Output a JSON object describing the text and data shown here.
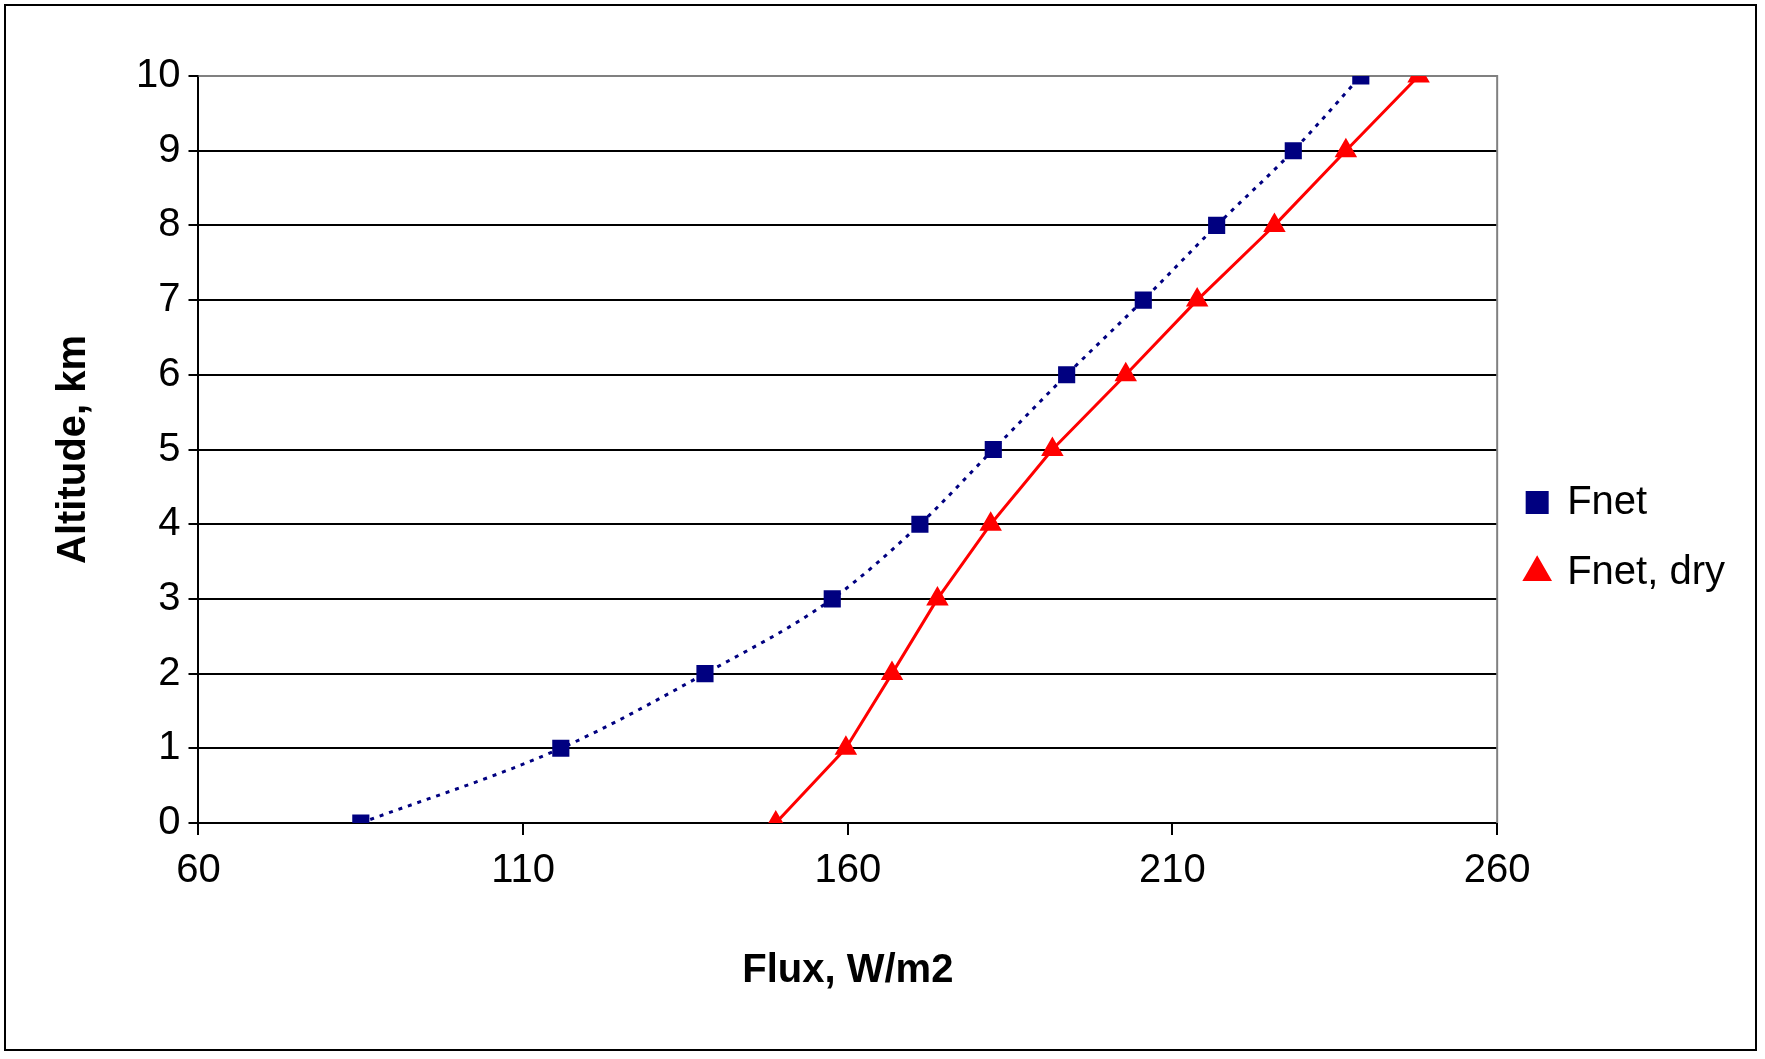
{
  "chart_data": {
    "type": "line",
    "xlabel": "Flux, W/m2",
    "ylabel": "Altitude, km",
    "xlim": [
      60,
      260
    ],
    "xticks": [
      60,
      110,
      160,
      210,
      260
    ],
    "ylim": [
      0,
      10
    ],
    "yticks": [
      0,
      1,
      2,
      3,
      4,
      5,
      6,
      7,
      8,
      9,
      10
    ],
    "grid": "y",
    "legend": "right",
    "series": [
      {
        "name": "Fnet",
        "color": "#000080",
        "marker": "square",
        "line_style": "dotted",
        "x": [
          85,
          115.8,
          138,
          157.6,
          171.1,
          182.4,
          193.7,
          205.5,
          216.8,
          228.6,
          239
        ],
        "values": [
          0,
          1,
          2,
          3,
          4,
          5,
          6,
          7,
          8,
          9,
          10
        ]
      },
      {
        "name": "Fnet, dry",
        "color": "#ff0000",
        "marker": "triangle",
        "line_style": "solid",
        "x": [
          148.9,
          159.7,
          166.8,
          173.8,
          182,
          191.5,
          202.8,
          213.8,
          225.7,
          236.7,
          247.9
        ],
        "values": [
          0,
          1,
          2,
          3,
          4,
          5,
          6,
          7,
          8,
          9,
          10
        ]
      }
    ]
  }
}
